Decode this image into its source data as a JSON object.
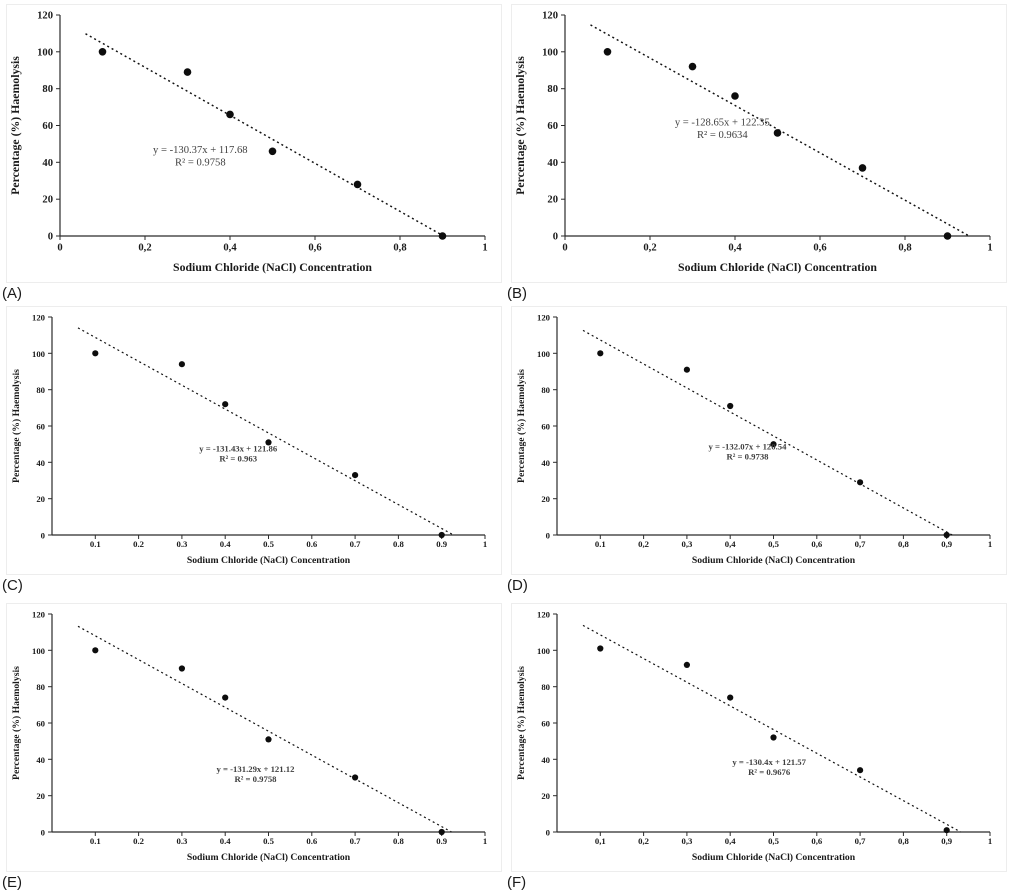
{
  "figure": {
    "panel_labels": [
      "(A)",
      "(B)",
      "(C)",
      "(D)",
      "(E)",
      "(F)"
    ]
  },
  "chart_data": [
    {
      "panel_label": "(A)",
      "type": "scatter",
      "xlabel": "Sodium Chloride (NaCl) Concentration",
      "ylabel": "Percentage (%) Haemolysis",
      "xlim": [
        0,
        1
      ],
      "ylim": [
        0,
        120
      ],
      "x": [
        0.1,
        0.3,
        0.4,
        0.5,
        0.7,
        0.9
      ],
      "y": [
        100,
        89,
        66,
        46,
        28,
        0
      ],
      "trendline": {
        "slope": -130.37,
        "intercept": 117.68,
        "style": "dotted"
      },
      "equation": "y = -130.37x + 117.68",
      "r_squared": "R² = 0.9758",
      "eq_anchor": {
        "x": 0.33,
        "y": 45
      },
      "xtick_values": [
        0,
        0.2,
        0.4,
        0.6,
        0.8,
        1
      ],
      "xtick_labels": [
        "0",
        "0,2",
        "0,4",
        "0,6",
        "0,8",
        "1"
      ],
      "ytick_values": [
        0,
        20,
        40,
        60,
        80,
        100,
        120
      ],
      "ytick_labels": [
        "0",
        "20",
        "40",
        "60",
        "80",
        "100",
        "120"
      ],
      "grid": false,
      "legend": false
    },
    {
      "panel_label": "(B)",
      "type": "scatter",
      "xlabel": "Sodium Chloride (NaCl) Concentration",
      "ylabel": "Percentage (%) Haemolysis",
      "xlim": [
        0,
        1
      ],
      "ylim": [
        0,
        120
      ],
      "x": [
        0.1,
        0.3,
        0.4,
        0.5,
        0.7,
        0.9
      ],
      "y": [
        100,
        92,
        76,
        56,
        37,
        0
      ],
      "trendline": {
        "slope": -128.65,
        "intercept": 122.35,
        "style": "dotted"
      },
      "equation": "y = -128.65x + 122.35",
      "r_squared": "R² = 0.9634",
      "eq_anchor": {
        "x": 0.37,
        "y": 60
      },
      "xtick_values": [
        0,
        0.2,
        0.4,
        0.6,
        0.8,
        1
      ],
      "xtick_labels": [
        "0",
        "0,2",
        "0,4",
        "0,6",
        "0,8",
        "1"
      ],
      "ytick_values": [
        0,
        20,
        40,
        60,
        80,
        100,
        120
      ],
      "ytick_labels": [
        "0",
        "20",
        "40",
        "60",
        "80",
        "100",
        "120"
      ],
      "grid": false,
      "legend": false
    },
    {
      "panel_label": "(C)",
      "type": "scatter",
      "xlabel": "Sodium Chloride (NaCl) Concentration",
      "ylabel": "Percentage (%) Haemolysis",
      "xlim": [
        0,
        1
      ],
      "ylim": [
        0,
        120
      ],
      "x": [
        0.1,
        0.3,
        0.4,
        0.5,
        0.7,
        0.9
      ],
      "y": [
        100,
        94,
        72,
        51,
        33,
        0
      ],
      "trendline": {
        "slope": -131.43,
        "intercept": 121.86,
        "style": "dotted"
      },
      "equation": "y = -131.43x + 121.86",
      "r_squared": "R² = 0.963",
      "eq_anchor": {
        "x": 0.43,
        "y": 46
      },
      "xtick_values": [
        0.1,
        0.2,
        0.3,
        0.4,
        0.5,
        0.6,
        0.7,
        0.8,
        0.9,
        1
      ],
      "xtick_labels": [
        "0.1",
        "0.2",
        "0.3",
        "0.4",
        "0.5",
        "0.6",
        "0.7",
        "0.8",
        "0.9",
        "1"
      ],
      "ytick_values": [
        0,
        20,
        40,
        60,
        80,
        100,
        120
      ],
      "ytick_labels": [
        "0",
        "20",
        "40",
        "60",
        "80",
        "100",
        "120"
      ],
      "grid": false,
      "legend": false
    },
    {
      "panel_label": "(D)",
      "type": "scatter",
      "xlabel": "Sodium Chloride (NaCl) Concentration",
      "ylabel": "Percentage (%) Haemolysis",
      "xlim": [
        0,
        1
      ],
      "ylim": [
        0,
        120
      ],
      "x": [
        0.1,
        0.3,
        0.4,
        0.5,
        0.7,
        0.9
      ],
      "y": [
        100,
        91,
        71,
        50,
        29,
        0
      ],
      "trendline": {
        "slope": -132.07,
        "intercept": 120.54,
        "style": "dotted"
      },
      "equation": "y = -132.07x + 120.54",
      "r_squared": "R² = 0.9738",
      "eq_anchor": {
        "x": 0.44,
        "y": 47
      },
      "xtick_values": [
        0.1,
        0.2,
        0.3,
        0.4,
        0.5,
        0.6,
        0.7,
        0.8,
        0.9,
        1
      ],
      "xtick_labels": [
        "0.1",
        "0,2",
        "0,3",
        "0,4",
        "0,5",
        "0,6",
        "0,7",
        "0,8",
        "0,9",
        "1"
      ],
      "ytick_values": [
        0,
        20,
        40,
        60,
        80,
        100,
        120
      ],
      "ytick_labels": [
        "0",
        "20",
        "40",
        "60",
        "80",
        "100",
        "120"
      ],
      "grid": false,
      "legend": false
    },
    {
      "panel_label": "(E)",
      "type": "scatter",
      "xlabel": "Sodium Chloride (NaCl) Concentration",
      "ylabel": "Percentage (%) Haemolysis",
      "xlim": [
        0,
        1
      ],
      "ylim": [
        0,
        120
      ],
      "x": [
        0.1,
        0.3,
        0.4,
        0.5,
        0.7,
        0.9
      ],
      "y": [
        100,
        90,
        74,
        51,
        30,
        0
      ],
      "trendline": {
        "slope": -131.29,
        "intercept": 121.12,
        "style": "dotted"
      },
      "equation": "y = -131.29x + 121.12",
      "r_squared": "R² = 0.9758",
      "eq_anchor": {
        "x": 0.47,
        "y": 33
      },
      "xtick_values": [
        0.1,
        0.2,
        0.3,
        0.4,
        0.5,
        0.6,
        0.7,
        0.8,
        0.9,
        1
      ],
      "xtick_labels": [
        "0.1",
        "0.2",
        "0.3",
        "0.4",
        "0.5",
        "0.6",
        "0.7",
        "0.8",
        "0.9",
        "1"
      ],
      "ytick_values": [
        0,
        20,
        40,
        60,
        80,
        100,
        120
      ],
      "ytick_labels": [
        "0",
        "20",
        "40",
        "60",
        "80",
        "100",
        "120"
      ],
      "grid": false,
      "legend": false
    },
    {
      "panel_label": "(F)",
      "type": "scatter",
      "xlabel": "Sodium Chloride (NaCl) Concentration",
      "ylabel": "Percentage (%) Haemolysis",
      "xlim": [
        0,
        1
      ],
      "ylim": [
        0,
        120
      ],
      "x": [
        0.1,
        0.3,
        0.4,
        0.5,
        0.7,
        0.9
      ],
      "y": [
        101,
        92,
        74,
        52,
        34,
        1
      ],
      "trendline": {
        "slope": -130.4,
        "intercept": 121.57,
        "style": "dotted"
      },
      "equation": "y = -130.4x + 121.57",
      "r_squared": "R² = 0.9676",
      "eq_anchor": {
        "x": 0.49,
        "y": 37
      },
      "xtick_values": [
        0.1,
        0.2,
        0.3,
        0.4,
        0.5,
        0.6,
        0.7,
        0.8,
        0.9,
        1
      ],
      "xtick_labels": [
        "0,1",
        "0,2",
        "0,3",
        "0,4",
        "0,5",
        "0,6",
        "0,7",
        "0,8",
        "0,9",
        "1"
      ],
      "ytick_values": [
        0,
        20,
        40,
        60,
        80,
        100,
        120
      ],
      "ytick_labels": [
        "0",
        "20",
        "40",
        "60",
        "80",
        "100",
        "120"
      ],
      "grid": false,
      "legend": false
    }
  ],
  "colors": {
    "point": "#0d0d0d",
    "axis": "#2b2b2b",
    "trendline": "#111111",
    "equation_text": "#3f3f3f",
    "background": "#ffffff"
  }
}
